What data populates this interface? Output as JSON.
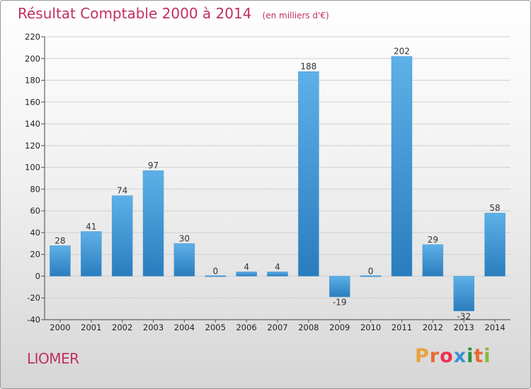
{
  "header": {
    "title": "Résultat Comptable 2000 à 2014",
    "unit": "(en milliers d'€)"
  },
  "footer": {
    "commune": "LIOMER",
    "brand": [
      "P",
      "r",
      "o",
      "x",
      "i",
      "t",
      "i"
    ]
  },
  "colors": {
    "title": "#c2305e",
    "bar_light": "#5eb0e8",
    "bar_dark": "#2a7dbd",
    "grid": "#d0d0d0",
    "brand": [
      "#e8a33a",
      "#e8692e",
      "#ef2f4e",
      "#3a8fd6",
      "#2a8f3e",
      "#e8692e",
      "#8ab83a"
    ]
  },
  "chart_data": {
    "type": "bar",
    "title": "Résultat Comptable 2000 à 2014",
    "ylabel": "(en milliers d'€)",
    "xlabel": "",
    "ylim": [
      -40,
      220
    ],
    "yticks": [
      220,
      200,
      180,
      160,
      140,
      120,
      100,
      80,
      60,
      40,
      20,
      0,
      -20,
      -40
    ],
    "ytick_labels": [
      "220",
      "200",
      "180",
      "160",
      "140",
      "120",
      "100",
      "80",
      "60",
      "40",
      "20",
      "0",
      "-20",
      "-40"
    ],
    "categories": [
      "2000",
      "2001",
      "2002",
      "2003",
      "2004",
      "2005",
      "2006",
      "2007",
      "2008",
      "2009",
      "2010",
      "2011",
      "2012",
      "2013",
      "2014"
    ],
    "values": [
      28,
      41,
      74,
      97,
      30,
      0,
      4,
      4,
      188,
      -19,
      0,
      202,
      29,
      -32,
      58
    ],
    "value_labels": [
      "28",
      "41",
      "74",
      "97",
      "30",
      "0",
      "4",
      "4",
      "188",
      "-19",
      "0",
      "202",
      "29",
      "-32",
      "58"
    ],
    "grid": true
  }
}
